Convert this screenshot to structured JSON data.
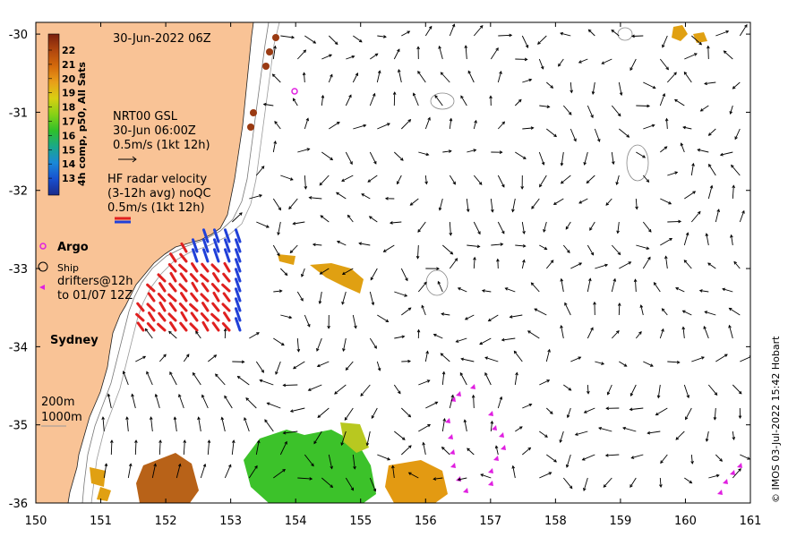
{
  "map": {
    "timestamp": "30-Jun-2022 06Z",
    "lon_ticks": [
      "150",
      "151",
      "152",
      "153",
      "154",
      "155",
      "156",
      "157",
      "158",
      "159",
      "160",
      "161"
    ],
    "lat_ticks": [
      "-30",
      "-31",
      "-32",
      "-33",
      "-34",
      "-35",
      "-36"
    ],
    "lon_range": [
      150,
      161
    ],
    "lat_range": [
      -36,
      -29.85
    ],
    "colorbar": {
      "label": "4h comp, p50, All Sats",
      "ticks": [
        "22",
        "21",
        "20",
        "19",
        "18",
        "17",
        "16",
        "15",
        "14",
        "13"
      ],
      "colors": [
        "#7a1f0e",
        "#b0460e",
        "#d46a0c",
        "#e9a019",
        "#d8d012",
        "#86d116",
        "#2fc02a",
        "#1aa88a",
        "#1a88d8",
        "#1850d0",
        "#1a2a8a"
      ]
    },
    "nrt": {
      "line1": "NRT00 GSL",
      "line2": "30-Jun 06:00Z",
      "line3": "0.5m/s (1kt 12h)"
    },
    "hf": {
      "line1": "HF radar velocity",
      "line2": "(3-12h avg) noQC",
      "line3": "0.5m/s (1kt 12h)"
    },
    "legend": {
      "argo": "Argo",
      "ship": "Ship",
      "drifters1": "drifters@12h",
      "drifters2": "to 01/07 12Z"
    },
    "city": "Sydney",
    "isobath1": "200m",
    "isobath2": "1000m",
    "credit": "© IMOS 03-Jul-2022 15:42 Hobart",
    "colors": {
      "land": "#f9c396",
      "hf_red": "#e02020",
      "hf_blue": "#2040d8",
      "argo": "#e020e0",
      "drifter": "#e020e0"
    }
  }
}
